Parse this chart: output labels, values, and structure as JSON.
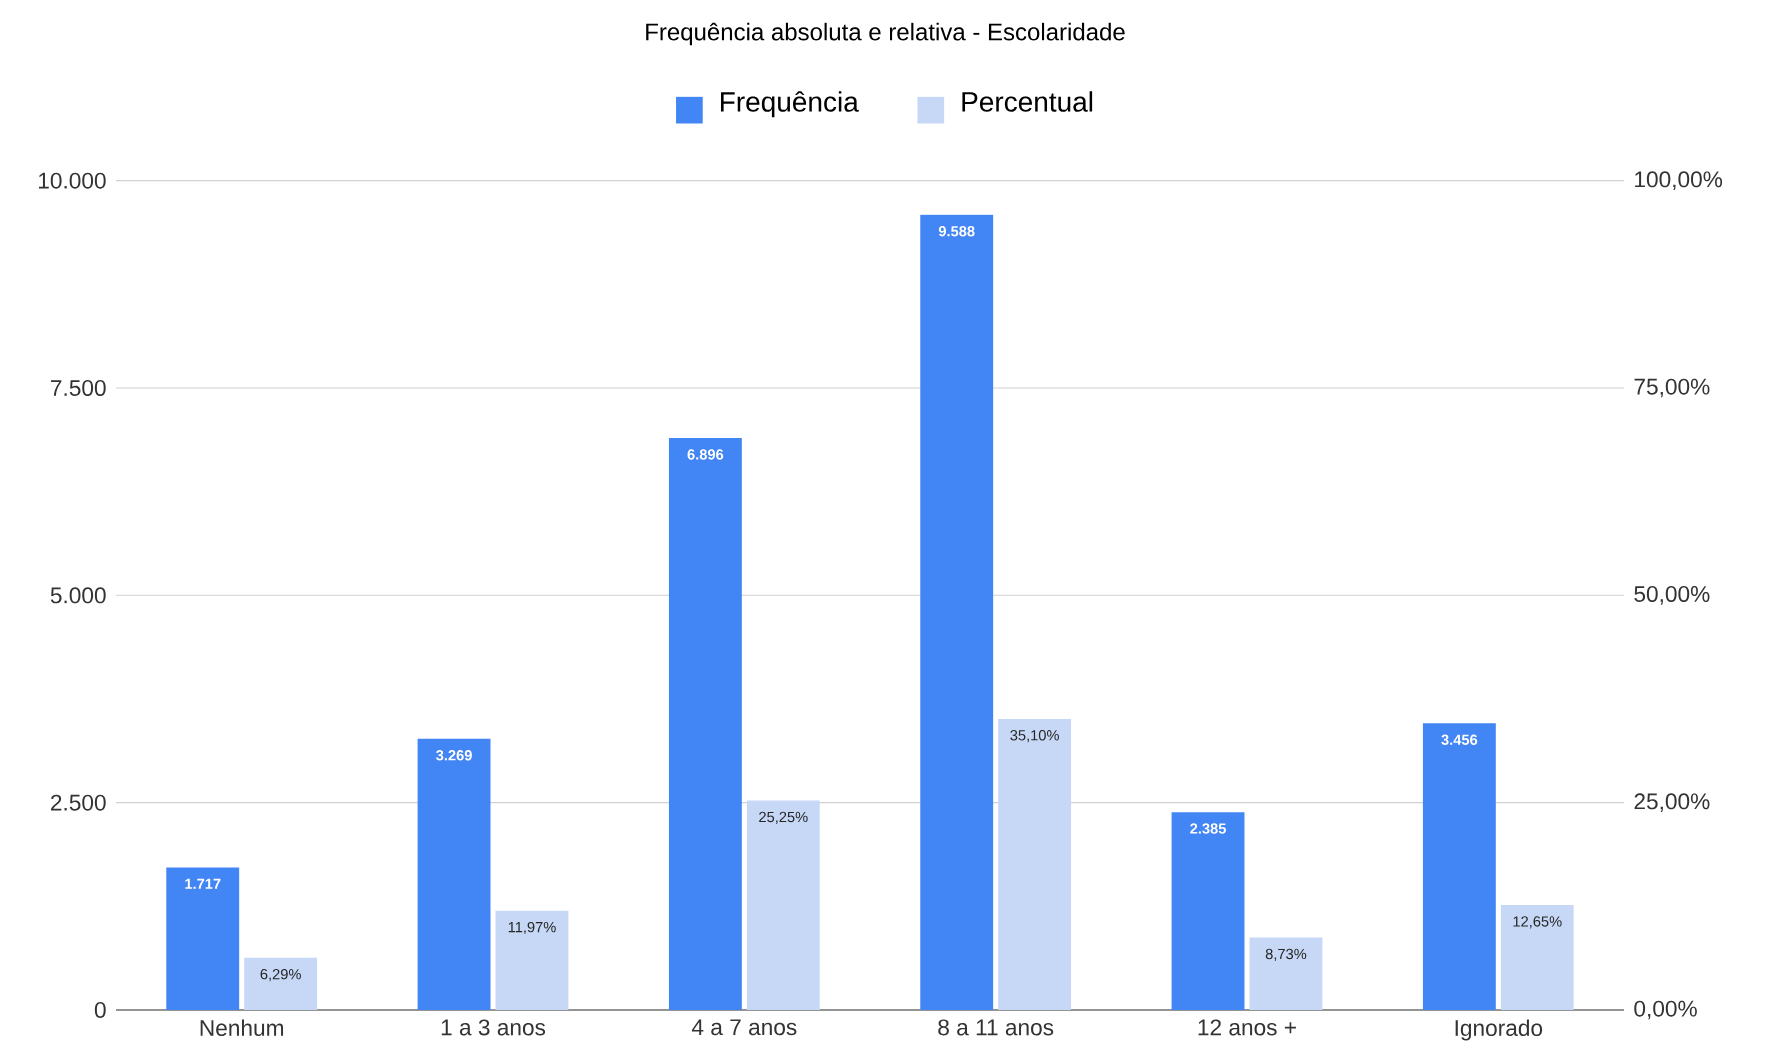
{
  "chart_data": {
    "type": "bar",
    "title": "Frequência absoluta e relativa - Escolaridade",
    "categories": [
      "Nenhum",
      "1 a 3 anos",
      "4 a 7 anos",
      "8 a 11 anos",
      "12 anos +",
      "Ignorado"
    ],
    "series": [
      {
        "name": "Frequência",
        "color": "#4285f4",
        "values": [
          1717,
          3269,
          6896,
          9588,
          2385,
          3456
        ],
        "value_labels": [
          "1.717",
          "3.269",
          "6.896",
          "9.588",
          "2.385",
          "3.456"
        ]
      },
      {
        "name": "Percentual",
        "color": "#c6d8f6",
        "axis": "y2",
        "values": [
          6.29,
          11.97,
          25.25,
          35.1,
          8.73,
          12.65
        ],
        "value_labels": [
          "6,29%",
          "11,97%",
          "25,25%",
          "35,10%",
          "8,73%",
          "12,65%"
        ]
      }
    ],
    "ylim": [
      0,
      10000
    ],
    "yticks": [
      {
        "value": 0,
        "label": "0"
      },
      {
        "value": 2500,
        "label": "2.500"
      },
      {
        "value": 5000,
        "label": "5.000"
      },
      {
        "value": 7500,
        "label": "7.500"
      },
      {
        "value": 10000,
        "label": "10.000"
      }
    ],
    "y2lim": [
      0,
      100
    ],
    "y2ticks": [
      {
        "value": 0,
        "label": "0,00%"
      },
      {
        "value": 25,
        "label": "25,00%"
      },
      {
        "value": 50,
        "label": "50,00%"
      },
      {
        "value": 75,
        "label": "75,00%"
      },
      {
        "value": 100,
        "label": "100,00%"
      }
    ],
    "grid": "y",
    "legend": "top"
  }
}
